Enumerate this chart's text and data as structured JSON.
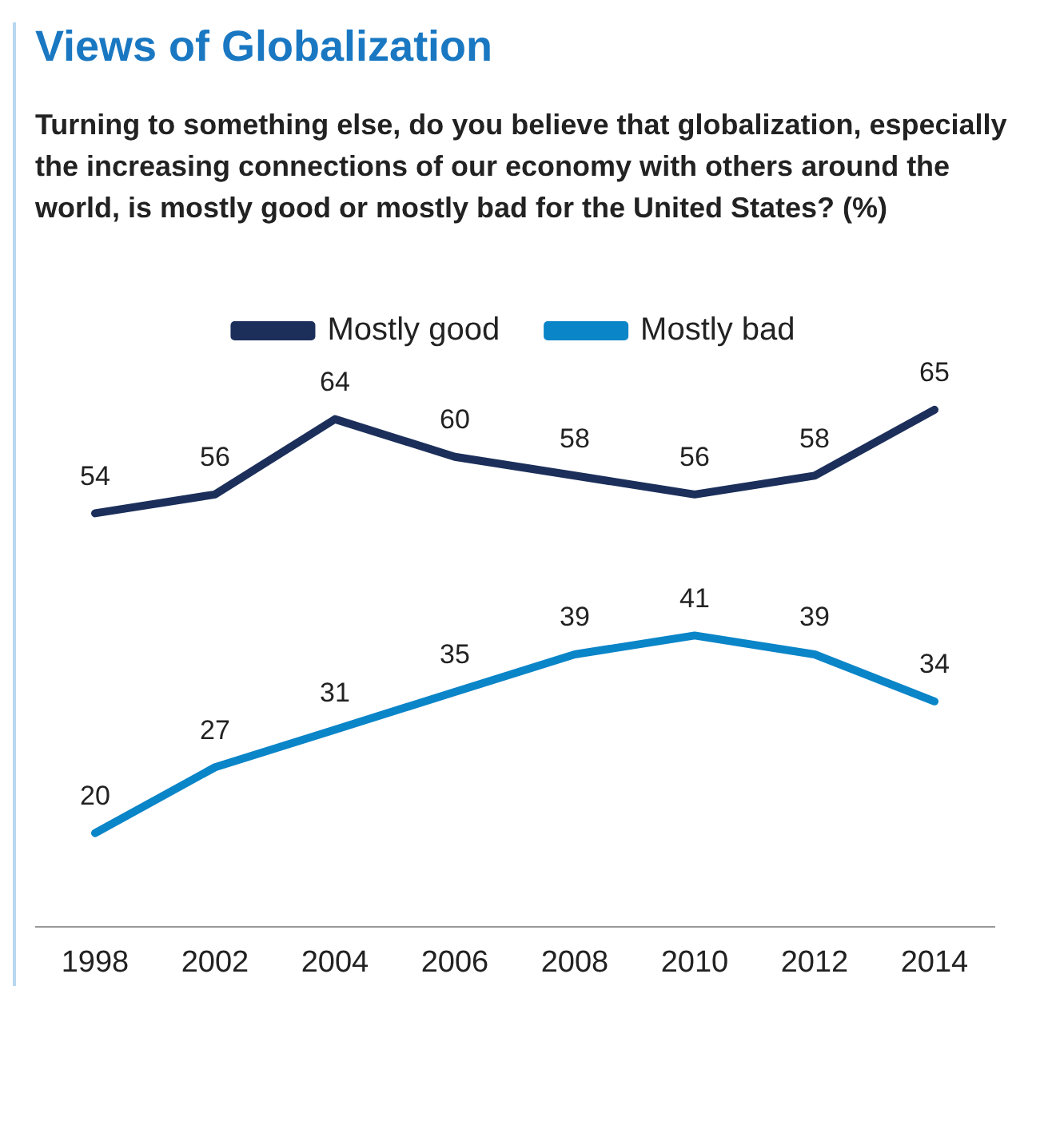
{
  "chart_data": {
    "type": "line",
    "title": "Views of Globalization",
    "subtitle": "Turning to something else, do you believe that globalization, especially the increasing connections of our economy with others around the world, is mostly good or mostly bad for the United States? (%)",
    "categories": [
      "1998",
      "2002",
      "2004",
      "2006",
      "2008",
      "2010",
      "2012",
      "2014"
    ],
    "series": [
      {
        "name": "Mostly good",
        "color": "#1c2f5a",
        "values": [
          54,
          56,
          64,
          60,
          58,
          56,
          58,
          65
        ]
      },
      {
        "name": "Mostly bad",
        "color": "#0a85c8",
        "values": [
          20,
          27,
          31,
          35,
          39,
          41,
          39,
          34
        ]
      }
    ],
    "data_labels": true,
    "legend": "top",
    "grid": false,
    "marker": "none",
    "line_style": "solid",
    "tick_labels": "x"
  }
}
